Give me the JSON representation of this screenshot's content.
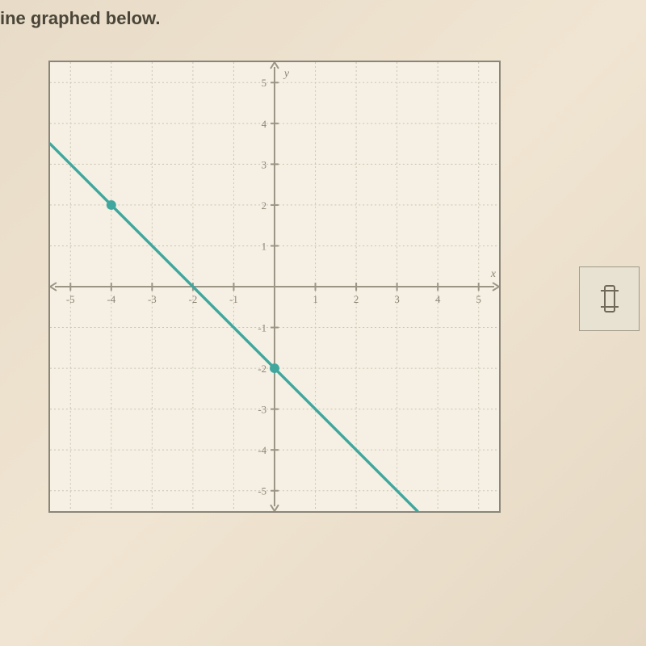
{
  "title": "ine graphed below.",
  "chart": {
    "type": "line",
    "background_color": "#f5f0e3",
    "border_color": "#8a8578",
    "grid_color": "#c8c3b3",
    "axis_color": "#9a9585",
    "axis_label_color": "#8a8575",
    "axis_label_fontsize": 14,
    "tick_label_fontsize": 13,
    "x_axis_label": "x",
    "y_axis_label": "y",
    "xlim": [
      -5.5,
      5.5
    ],
    "ylim": [
      -5.5,
      5.5
    ],
    "xtick_step": 1,
    "ytick_step": 1,
    "tick_values": [
      -5,
      -4,
      -3,
      -2,
      -1,
      1,
      2,
      3,
      4,
      5
    ],
    "line": {
      "color": "#3fa79e",
      "width": 3.5,
      "points": [
        {
          "x": -5.5,
          "y": 3.5
        },
        {
          "x": 3.5,
          "y": -5.5
        }
      ]
    },
    "markers": [
      {
        "x": -4,
        "y": 2,
        "radius": 6,
        "color": "#3fa79e"
      },
      {
        "x": 0,
        "y": -2,
        "radius": 6,
        "color": "#3fa79e"
      }
    ]
  }
}
